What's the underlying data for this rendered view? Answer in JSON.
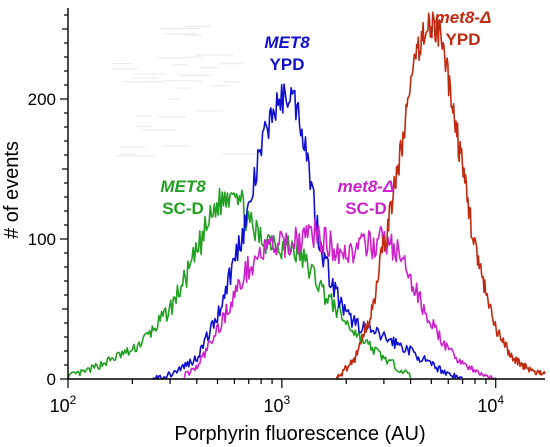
{
  "chart_data": {
    "type": "line",
    "title": "",
    "xlabel": "Porphyrin fluorescence (AU)",
    "ylabel": "# of events",
    "x_scale": "log",
    "xlim": [
      100,
      17000
    ],
    "ylim": [
      0,
      265
    ],
    "x_ticks": [
      {
        "value": 100,
        "base": "10",
        "exp": "2"
      },
      {
        "value": 1000,
        "base": "10",
        "exp": "3"
      },
      {
        "value": 10000,
        "base": "10",
        "exp": "4"
      }
    ],
    "y_ticks": [
      0,
      100,
      200
    ],
    "grid": false,
    "legend": "none",
    "series": [
      {
        "label_lines": [
          "MET8",
          "SC-D"
        ],
        "label_italic_first": true,
        "color": "#22a022",
        "x": [
          100,
          120,
          150,
          180,
          200,
          250,
          300,
          350,
          400,
          450,
          500,
          550,
          600,
          650,
          700,
          800,
          900,
          1000,
          1100,
          1200,
          1400,
          1600,
          1800,
          2000,
          2500,
          3000,
          3500,
          4000
        ],
        "y": [
          2,
          5,
          12,
          18,
          20,
          35,
          50,
          70,
          90,
          110,
          125,
          130,
          140,
          125,
          110,
          100,
          100,
          95,
          95,
          90,
          75,
          60,
          50,
          40,
          25,
          15,
          8,
          2
        ]
      },
      {
        "label_lines": [
          "MET8",
          "YPD"
        ],
        "label_italic_first": true,
        "color": "#1010d0",
        "x": [
          250,
          300,
          400,
          500,
          600,
          700,
          800,
          900,
          1000,
          1100,
          1200,
          1300,
          1400,
          1500,
          1700,
          2000,
          2500,
          3000,
          4000,
          5000,
          6000,
          7000
        ],
        "y": [
          0,
          3,
          15,
          45,
          85,
          120,
          165,
          190,
          200,
          205,
          190,
          165,
          130,
          100,
          70,
          45,
          35,
          30,
          20,
          10,
          4,
          0
        ]
      },
      {
        "label_lines": [
          "met8-Δ",
          "SC-D"
        ],
        "label_italic_first": true,
        "color": "#cc22cc",
        "x": [
          350,
          400,
          500,
          600,
          700,
          800,
          900,
          1000,
          1200,
          1400,
          1700,
          2000,
          2500,
          3000,
          3500,
          4000,
          5000,
          6000,
          8000,
          10000
        ],
        "y": [
          3,
          8,
          35,
          60,
          80,
          90,
          95,
          95,
          100,
          105,
          95,
          90,
          95,
          100,
          90,
          70,
          40,
          20,
          5,
          0
        ]
      },
      {
        "label_lines": [
          "met8-Δ",
          "YPD"
        ],
        "label_italic_first": true,
        "color": "#c02a10",
        "x": [
          1800,
          2200,
          2600,
          3000,
          3500,
          4000,
          4500,
          5000,
          5500,
          6000,
          7000,
          8000,
          9000,
          10000,
          12000,
          15000,
          17000
        ],
        "y": [
          0,
          15,
          45,
          95,
          150,
          210,
          245,
          255,
          245,
          215,
          150,
          95,
          60,
          35,
          15,
          5,
          3
        ]
      }
    ]
  }
}
